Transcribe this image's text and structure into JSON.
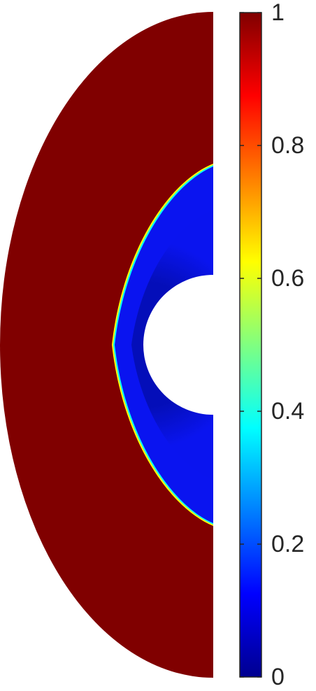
{
  "chart_data": {
    "type": "heatmap",
    "title": "",
    "xlabel": "",
    "ylabel": "",
    "colormap": "jet",
    "colorbar": {
      "range": [
        0,
        1
      ],
      "ticks": [
        0,
        0.2,
        0.4,
        0.6,
        0.8,
        1
      ],
      "tick_labels": [
        "0",
        "0.2",
        "0.4",
        "0.6",
        "0.8",
        "1"
      ],
      "placement": "right"
    },
    "regions": [
      {
        "name": "outer-shell",
        "value": 1.0
      },
      {
        "name": "shocked-layer",
        "value": 0.08
      },
      {
        "name": "inner-body-gap",
        "value": null
      }
    ],
    "shape": "half-annulus (left half)",
    "colors": {
      "high": "#800000",
      "low": "#00008f",
      "mid_layer": "#0a14f0",
      "deep_layer": "#000a9c"
    }
  }
}
